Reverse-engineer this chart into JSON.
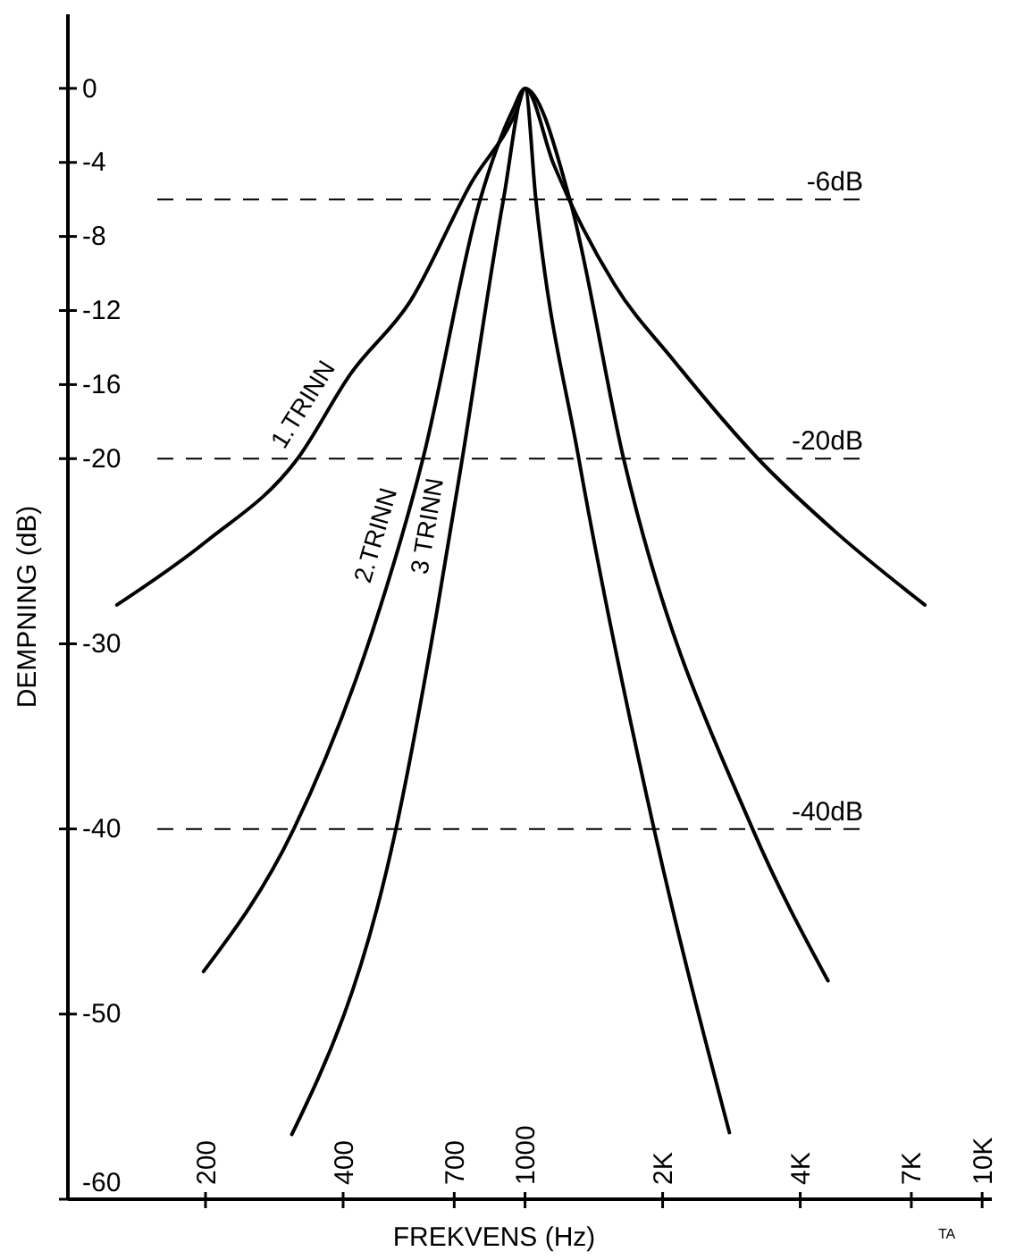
{
  "chart_data": {
    "type": "line",
    "xlabel": "FREKVENS  (Hz)",
    "ylabel": "DEMPNING (dB)",
    "log": "x",
    "xlim": [
      100,
      10500
    ],
    "ylim": [
      -60,
      4
    ],
    "xticks": [
      200,
      400,
      700,
      1000,
      {
        "value": 2000,
        "label": "2K"
      },
      {
        "value": 4000,
        "label": "4K"
      },
      {
        "value": 7000,
        "label": "7K"
      },
      {
        "value": 10000,
        "label": "10K"
      }
    ],
    "yticks": [
      0,
      -4,
      -8,
      -12,
      -16,
      -20,
      -30,
      -40,
      -50,
      -60
    ],
    "grid": false,
    "legend": false,
    "marker": "none",
    "line_style": "solid",
    "series": [
      {
        "name": "1.TRINN",
        "color": "#000000",
        "x": [
          128,
          200,
          318,
          416,
          561,
          763,
          965,
          1000,
          1155,
          1570,
          2115,
          3233,
          4800,
          7490
        ],
        "values": [
          -27.9,
          -24.5,
          -20,
          -15.4,
          -11.5,
          -5.1,
          -1,
          0,
          -4.1,
          -10.6,
          -14.7,
          -20,
          -24,
          -27.9
        ]
      },
      {
        "name": "2.TRINN",
        "color": "#000000",
        "x": [
          198,
          312,
          464,
          598,
          798,
          939,
          1000,
          1253,
          1643,
          3146,
          4600
        ],
        "values": [
          -47.7,
          -40,
          -29.3,
          -20,
          -6,
          -1.2,
          0,
          -6,
          -20,
          -40,
          -48.2
        ]
      },
      {
        "name": "3 TRINN",
        "color": "#000000",
        "x": [
          309,
          522,
          642,
          729,
          897,
          1000,
          1056,
          1311,
          1915,
          2800
        ],
        "values": [
          -56.5,
          -40,
          -28.2,
          -20,
          -6,
          0,
          -6,
          -20,
          -40,
          -56.4
        ]
      }
    ],
    "ref_lines": [
      {
        "axis": "y",
        "value": -6,
        "label": "-6dB",
        "line_style": "dashed"
      },
      {
        "axis": "y",
        "value": -20,
        "label": "-20dB",
        "line_style": "dashed"
      },
      {
        "axis": "y",
        "value": -40,
        "label": "-40dB",
        "line_style": "dashed"
      }
    ],
    "annotations": [
      "TA"
    ]
  }
}
